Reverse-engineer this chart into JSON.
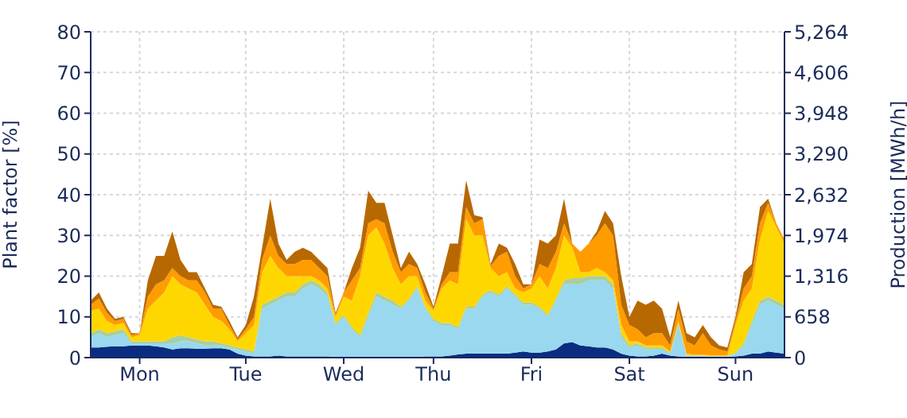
{
  "chart_data": {
    "type": "area",
    "stacked": true,
    "ylabel": "Plant factor [%]",
    "y2label": "Production [MWh/h]",
    "categories": [
      null,
      null,
      null,
      null,
      null,
      null,
      "Mon",
      null,
      null,
      null,
      null,
      null,
      null,
      null,
      null,
      null,
      null,
      null,
      null,
      "Tue",
      null,
      null,
      null,
      null,
      null,
      null,
      null,
      null,
      null,
      null,
      null,
      "Wed",
      null,
      null,
      null,
      null,
      null,
      null,
      null,
      null,
      null,
      null,
      "Thu",
      null,
      null,
      null,
      null,
      null,
      null,
      null,
      null,
      null,
      null,
      null,
      "Fri",
      null,
      null,
      null,
      null,
      null,
      null,
      null,
      null,
      null,
      null,
      null,
      "Sat",
      null,
      null,
      null,
      null,
      null,
      null,
      null,
      null,
      null,
      null,
      null,
      null,
      "Sun",
      null,
      null,
      null,
      null,
      null,
      null
    ],
    "series": [
      {
        "color": "#0a2d82",
        "values": [
          2.5,
          2.5,
          2.7,
          2.8,
          2.8,
          3,
          3,
          3,
          2.8,
          2.5,
          2,
          2.3,
          2.3,
          2.2,
          2.2,
          2.3,
          2.3,
          2,
          1,
          0.5,
          0.3,
          0.3,
          0.3,
          0.5,
          0.3,
          0.3,
          0.3,
          0.3,
          0.3,
          0.3,
          0.2,
          0.2,
          0.2,
          0.2,
          0.2,
          0.2,
          0.2,
          0.2,
          0.2,
          0.2,
          0.2,
          0.3,
          0.3,
          0.3,
          0.5,
          0.8,
          1,
          1,
          1,
          1,
          1,
          1,
          1.2,
          1.5,
          1.2,
          1.2,
          1.5,
          2,
          3.5,
          3.8,
          3,
          2.8,
          2.5,
          2.5,
          2,
          1,
          0.5,
          0.3,
          0.3,
          0.5,
          1,
          0.5,
          0.3,
          0.2,
          0.2,
          0.2,
          0.2,
          0.2,
          0.2,
          0.3,
          0.5,
          1,
          1,
          1.5,
          1.2,
          1
        ]
      },
      {
        "color": "#99d8ee",
        "values": [
          2.5,
          3.5,
          2.3,
          2.7,
          3.2,
          0.5,
          0.5,
          0.5,
          0.7,
          1,
          1.5,
          1.7,
          1.7,
          1.3,
          0.8,
          0.7,
          0.7,
          0.5,
          1,
          1,
          0.7,
          11.7,
          12.7,
          13.5,
          14.7,
          14.7,
          16.7,
          17.7,
          16.7,
          14.7,
          7.8,
          9.8,
          6.8,
          4.8,
          9.8,
          14.8,
          13.8,
          12.8,
          11.8,
          13.8,
          16.8,
          11.7,
          8.7,
          7.7,
          7.5,
          6.2,
          11,
          11,
          14,
          15,
          14,
          16,
          13.8,
          11.5,
          11.8,
          10.8,
          8.5,
          12,
          14.5,
          14.2,
          15,
          16.2,
          16.5,
          16.5,
          15,
          4,
          2,
          2.7,
          1.7,
          1.5,
          1,
          0.5,
          7.7,
          0.3,
          0.2,
          0.2,
          0.1,
          0.1,
          0.1,
          0.7,
          2.5,
          7,
          12,
          12.5,
          11.8,
          11
        ]
      },
      {
        "color": "#a8cfa0",
        "values": [
          1,
          1,
          1,
          1,
          1,
          0.5,
          0.5,
          0.5,
          0.5,
          0.5,
          1.5,
          1.5,
          1,
          1,
          1,
          1,
          0.5,
          0.5,
          0.5,
          0.5,
          0.5,
          1,
          1,
          1,
          1,
          1,
          1,
          1,
          1,
          1,
          0.5,
          0.5,
          0.5,
          0.5,
          1,
          1,
          1,
          1,
          0.5,
          0.5,
          0.5,
          0.5,
          0.5,
          0.5,
          0.5,
          0.5,
          0.5,
          0.5,
          0.5,
          0.5,
          0.5,
          0.5,
          0.5,
          0.5,
          0.5,
          0.5,
          0.5,
          0.5,
          1,
          1.5,
          1.5,
          1,
          1,
          1,
          1,
          1,
          0.5,
          0.5,
          0.5,
          0.5,
          0.5,
          0.2,
          0.5,
          0.2,
          0.1,
          0.1,
          0.1,
          0.1,
          0.1,
          0.2,
          0.5,
          1,
          1,
          1,
          1,
          1
        ]
      },
      {
        "color": "#ffd700",
        "values": [
          5.5,
          5,
          3,
          1.5,
          1.5,
          1,
          1.5,
          8,
          10,
          12,
          15,
          12.5,
          12,
          11.5,
          9,
          6,
          5.5,
          4,
          1.5,
          4,
          6.5,
          8,
          11,
          7,
          4,
          4,
          2,
          1,
          1,
          1,
          1.5,
          4.5,
          6.5,
          14.5,
          19,
          16,
          13,
          8,
          5.5,
          5.5,
          2.5,
          1.5,
          2,
          8.5,
          10.5,
          10.5,
          21.5,
          17.5,
          14.5,
          5.5,
          4.5,
          3.5,
          1.5,
          2.5,
          3.5,
          7.5,
          6.5,
          7.5,
          11,
          7.5,
          1.5,
          1,
          2,
          1,
          1,
          2,
          1,
          0.5,
          0.5,
          0.5,
          0.5,
          0.3,
          0.5,
          0.3,
          0.2,
          0.2,
          0.2,
          0.1,
          0.1,
          6.8,
          10.5,
          8,
          15,
          21,
          18,
          15
        ]
      },
      {
        "color": "#ff9c00",
        "values": [
          1.5,
          2.5,
          2,
          1,
          1,
          0.5,
          0.5,
          3,
          4,
          3,
          2,
          2,
          2,
          3,
          3,
          2,
          3,
          1,
          0.5,
          1,
          2,
          3,
          5,
          3,
          3,
          3,
          4,
          4,
          3,
          3,
          0.5,
          1,
          5,
          2,
          3,
          2,
          5,
          4,
          3,
          3,
          2,
          2,
          0.5,
          1,
          2,
          3,
          3,
          3,
          4,
          0.5,
          5,
          5,
          3,
          1,
          1,
          3,
          5,
          4,
          3,
          1,
          5,
          7,
          8,
          12,
          11,
          5,
          4,
          3,
          2,
          3,
          3,
          1.5,
          3,
          3,
          2.3,
          5.3,
          2.4,
          1.5,
          1,
          1,
          3,
          3,
          4,
          2,
          1,
          1
        ]
      },
      {
        "color": "#b86800",
        "values": [
          1,
          1.5,
          1,
          0.5,
          0.5,
          0.5,
          0,
          4,
          7,
          6,
          9,
          4,
          2,
          2,
          1,
          1,
          0.5,
          1,
          0.5,
          1,
          5,
          3,
          9,
          3,
          1,
          3,
          3,
          2,
          2,
          2,
          0.5,
          0,
          3,
          5,
          8,
          4,
          5,
          4,
          1,
          3,
          1,
          2,
          0.5,
          2,
          7,
          7,
          6.5,
          2,
          0.5,
          0.5,
          3,
          1,
          3,
          1,
          0,
          6,
          6,
          4,
          6,
          0,
          0,
          0,
          1,
          3,
          3,
          7,
          2,
          7,
          8,
          8,
          6,
          2,
          2,
          2,
          2,
          2,
          2,
          1,
          1,
          1,
          4,
          3,
          4,
          1,
          0,
          0
        ]
      }
    ],
    "ylim": [
      0,
      80
    ],
    "yticks": [
      0,
      10,
      20,
      30,
      40,
      50,
      60,
      70,
      80
    ],
    "y2lim": [
      0,
      5264
    ],
    "y2ticks": [
      0,
      658,
      {
        "value": 1316,
        "label": "1,316"
      },
      {
        "value": 1974,
        "label": "1,974"
      },
      {
        "value": 2632,
        "label": "2,632"
      },
      {
        "value": 3290,
        "label": "3,290"
      },
      {
        "value": 3948,
        "label": "3,948"
      },
      {
        "value": 4606,
        "label": "4,606"
      },
      {
        "value": 5264,
        "label": "5,264"
      }
    ],
    "grid": true,
    "legend": false
  }
}
